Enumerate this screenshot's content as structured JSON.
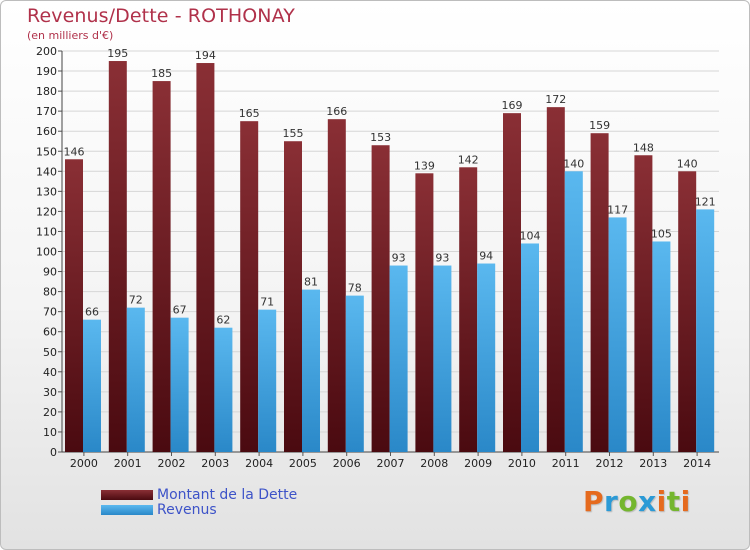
{
  "colors": {
    "debt_top": "#8a2f35",
    "debt_bottom": "#4a0a10",
    "revenue_top": "#5ab8ef",
    "revenue_bottom": "#2a88c8",
    "title": "#b0314a",
    "legend_text": "#3d53c8"
  },
  "brand": {
    "logo_text": "Proxiti",
    "letter_colors": [
      "#e56a1e",
      "#2b9ad6",
      "#74b62e",
      "#2b9ad6",
      "#e56a1e",
      "#74b62e",
      "#e56a1e"
    ]
  },
  "chart_data": {
    "type": "bar",
    "title": "Revenus/Dette - ROTHONAY",
    "subtitle": "(en milliers d'€)",
    "xlabel": "",
    "ylabel": "",
    "ylim": [
      0,
      200
    ],
    "yticks": [
      0,
      10,
      20,
      30,
      40,
      50,
      60,
      70,
      80,
      90,
      100,
      110,
      120,
      130,
      140,
      150,
      160,
      170,
      180,
      190,
      200
    ],
    "grid": true,
    "legend_position": "bottom-left",
    "categories": [
      "2000",
      "2001",
      "2002",
      "2003",
      "2004",
      "2005",
      "2006",
      "2007",
      "2008",
      "2009",
      "2010",
      "2011",
      "2012",
      "2013",
      "2014"
    ],
    "series": [
      {
        "name": "Montant de la Dette",
        "values": [
          146,
          195,
          185,
          194,
          165,
          155,
          166,
          153,
          139,
          142,
          169,
          172,
          159,
          148,
          140
        ]
      },
      {
        "name": "Revenus",
        "values": [
          66,
          72,
          67,
          62,
          71,
          81,
          78,
          93,
          93,
          94,
          104,
          140,
          117,
          105,
          121
        ]
      }
    ]
  }
}
